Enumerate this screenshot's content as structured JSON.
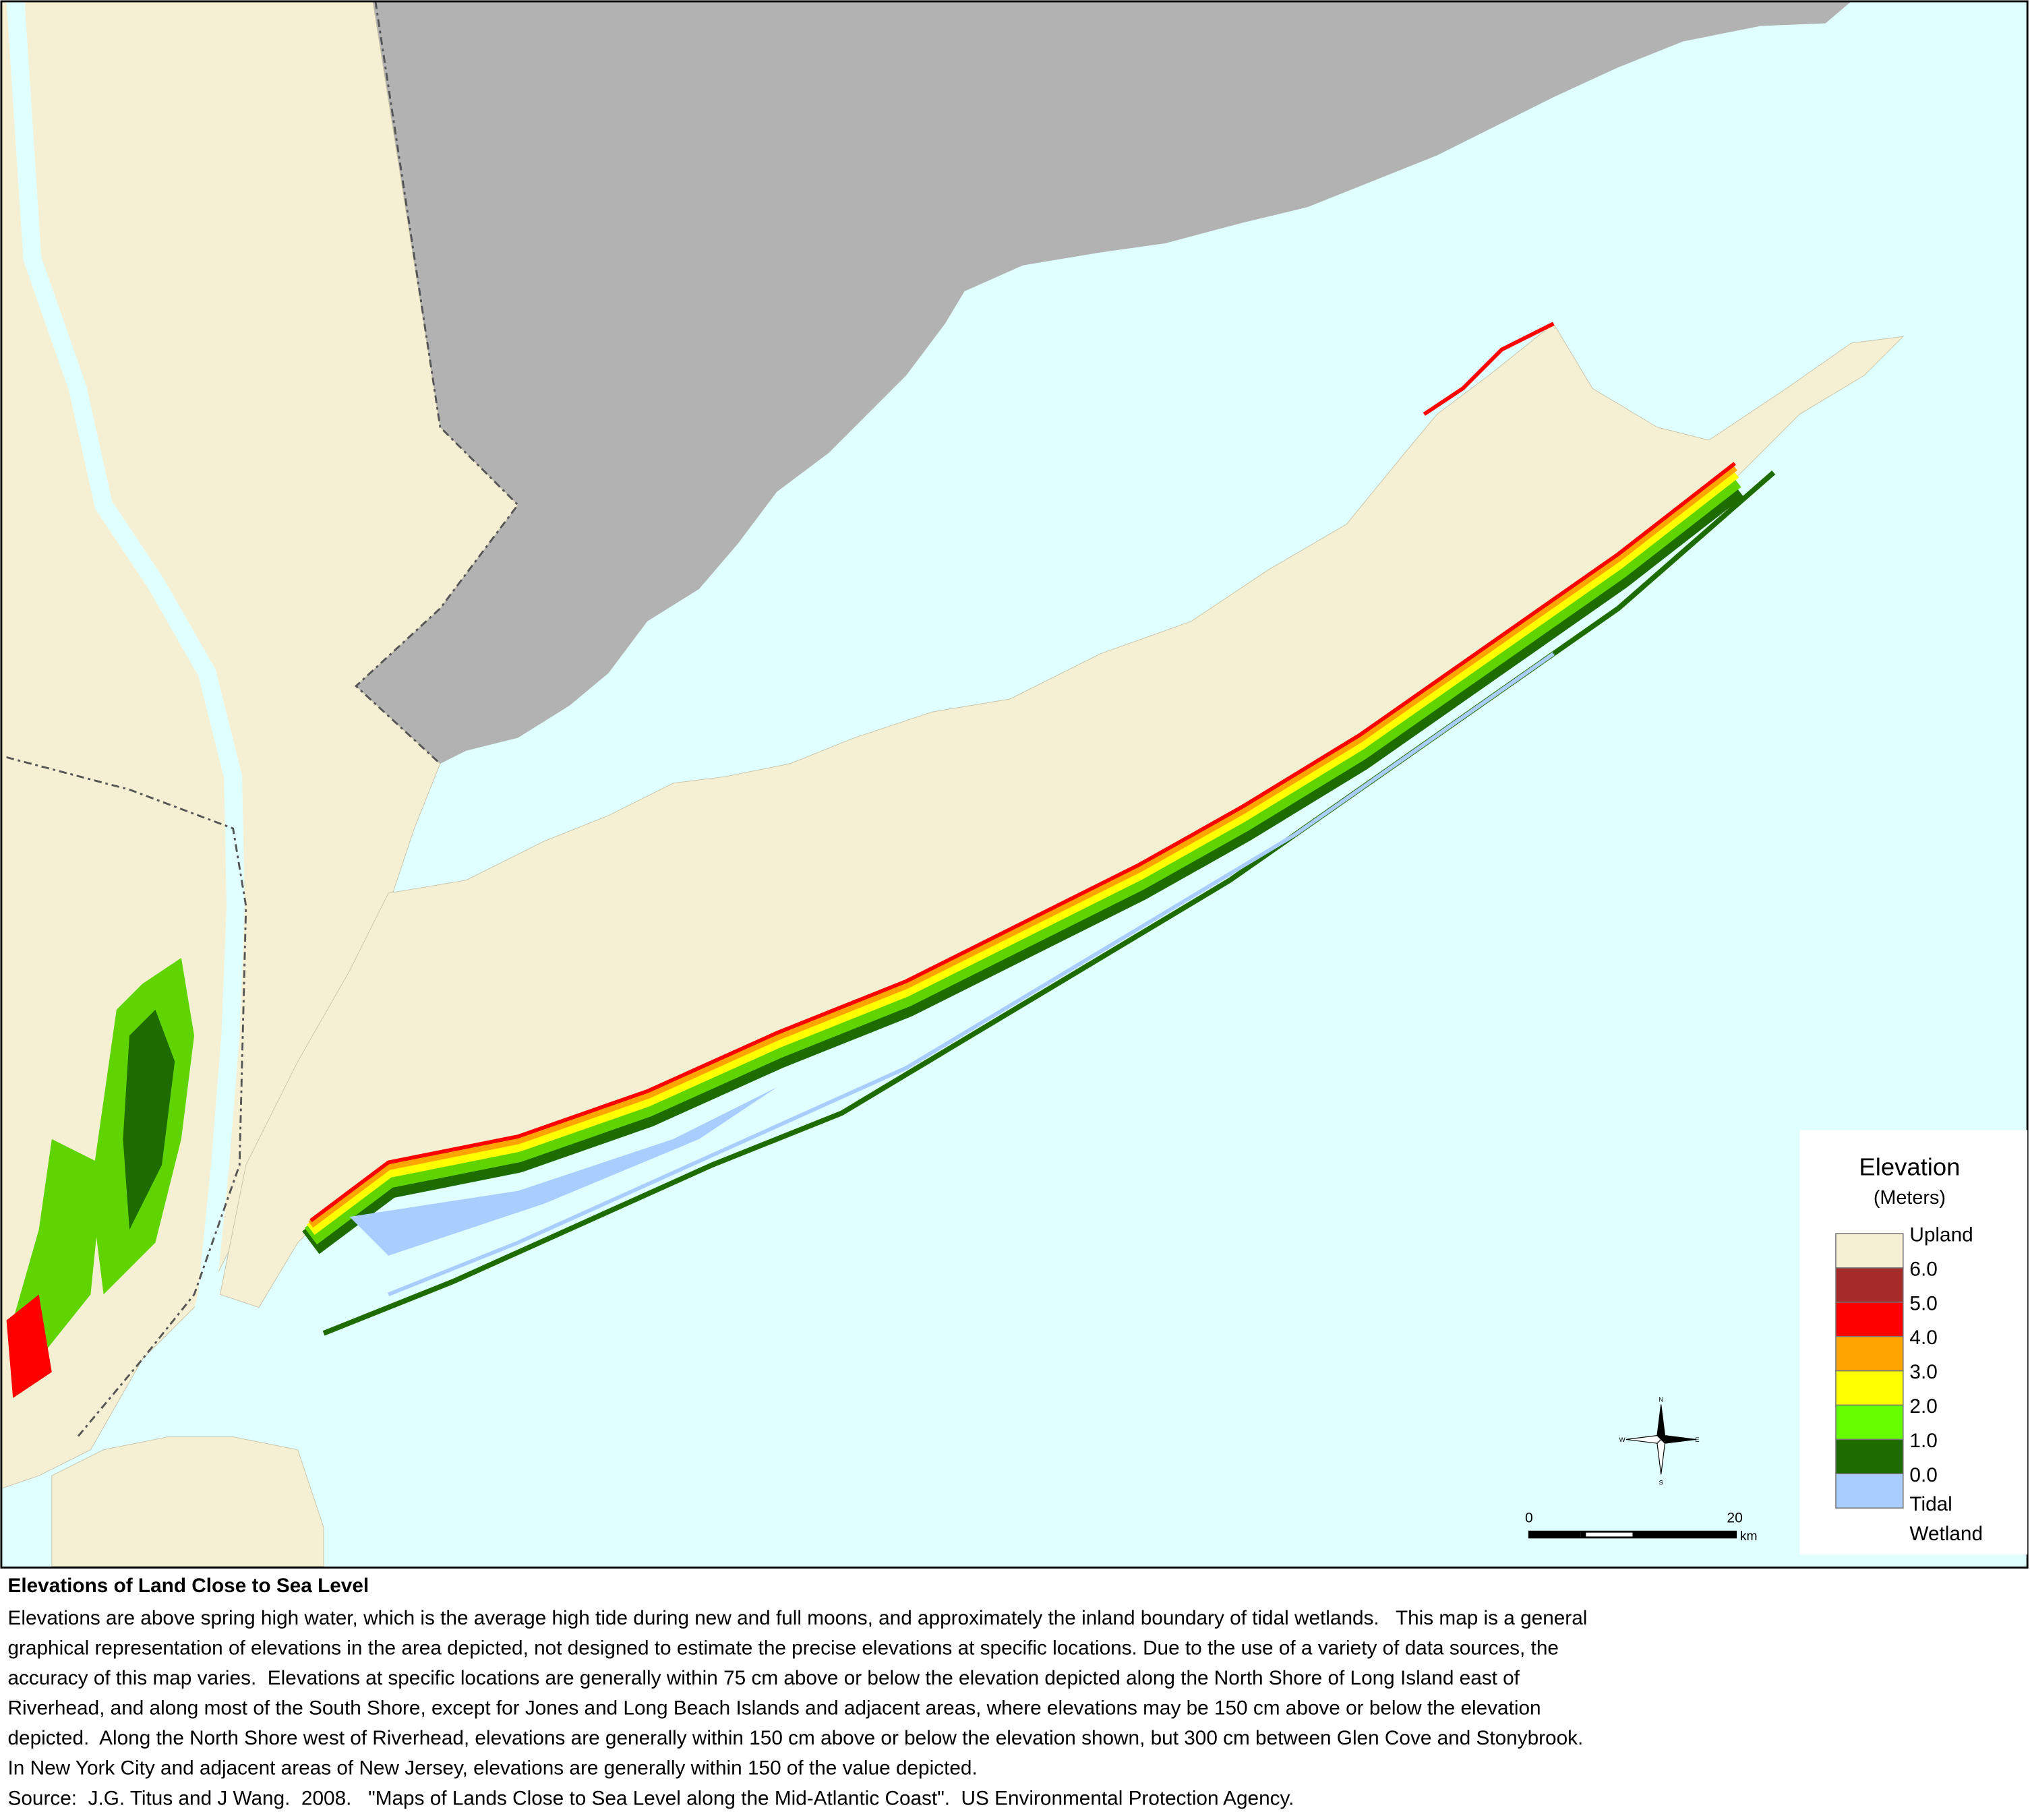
{
  "map": {
    "legend": {
      "title": "Elevation",
      "subtitle": "(Meters)",
      "colors": [
        "#f5f0d4",
        "#a52a2a",
        "#ff0000",
        "#ffa500",
        "#ffff00",
        "#66ff00",
        "#1e6b00",
        "#a9cdff"
      ],
      "labels": [
        "Upland",
        "6.0",
        "5.0",
        "4.0",
        "3.0",
        "2.0",
        "1.0",
        "0.0"
      ],
      "bottom_labels": [
        "Tidal",
        "Wetland"
      ]
    },
    "scale_bar": {
      "labels": [
        "0",
        "20"
      ],
      "unit": "km"
    },
    "compass": {
      "labels": [
        "N",
        "E",
        "S",
        "W"
      ]
    }
  },
  "caption": {
    "title": "Elevations of Land Close to Sea Level",
    "lines": [
      "Elevations are above spring high water, which is the average high tide during new and full moons, and approximately the inland boundary of tidal wetlands.   This map is a general",
      "graphical representation of elevations in the area depicted, not designed to estimate the precise elevations at specific locations. Due to the use of a variety of data sources, the",
      "accuracy of this map varies.  Elevations at specific locations are generally within 75 cm above or below the elevation depicted along the North Shore of Long Island east of",
      "Riverhead, and along most of the South Shore, except for Jones and Long Beach Islands and adjacent areas, where elevations may be 150 cm above or below the elevation",
      "depicted.  Along the North Shore west of Riverhead, elevations are generally within 150 cm above or below the elevation shown, but 300 cm between Glen Cove and Stonybrook.",
      "In New York City and adjacent areas of New Jersey, elevations are generally within 150 of the value depicted."
    ],
    "source": "Source:  J.G. Titus and J Wang.  2008.   \"Maps of Lands Close to Sea Level along the Mid-Atlantic Coast\".  US Environmental Protection Agency."
  }
}
